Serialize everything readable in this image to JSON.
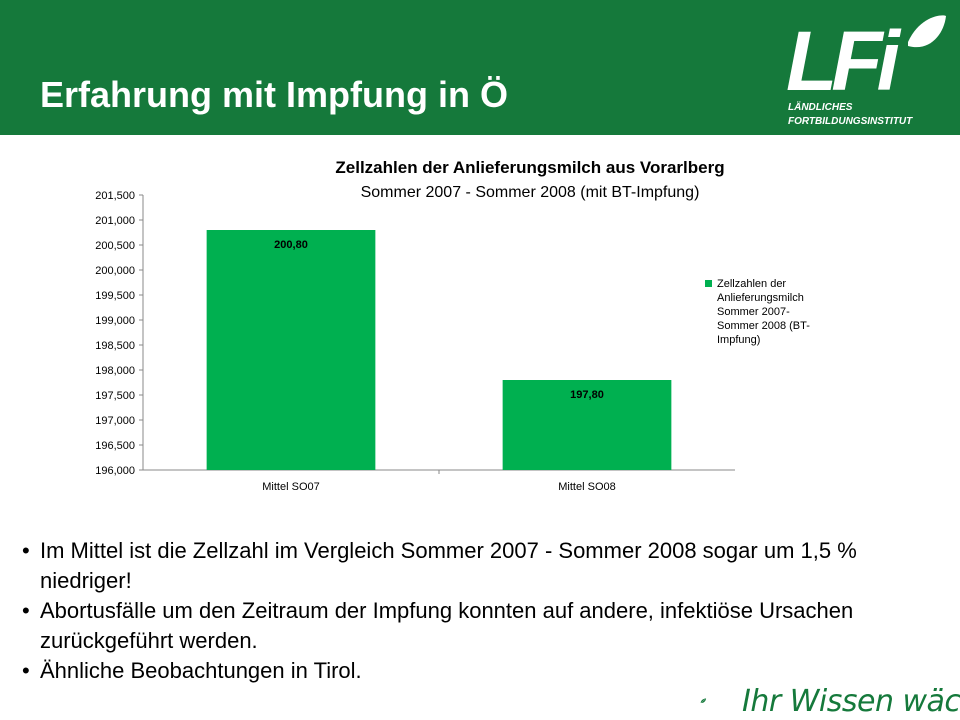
{
  "slide": {
    "title": "Erfahrung mit Impfung in Ö",
    "bullets": [
      "Im Mittel ist die Zellzahl im Vergleich Sommer 2007 - Sommer 2008 sogar um 1,5 % niedriger!",
      "Abortusfälle um den Zeitraum der Impfung konnten auf andere, infektiöse Ursachen zurückgeführt werden.",
      "Ähnliche Beobachtungen in Tirol."
    ]
  },
  "logo": {
    "mark": "LFi",
    "line1": "LÄNDLICHES",
    "line2": "FORTBILDUNGSINSTITUT"
  },
  "footer": {
    "slogan": "Ihr Wissen wächst",
    "icon": "leaf-icon"
  },
  "colors": {
    "header": "#15793b",
    "bar": "#00b050",
    "footer": "#15793b"
  },
  "chart_data": {
    "type": "bar",
    "title": "Zellzahlen der Anlieferungsmilch aus Vorarlberg",
    "subtitle": "Sommer 2007 - Sommer 2008 (mit BT-Impfung)",
    "categories": [
      "Mittel SO07",
      "Mittel SO08"
    ],
    "series": [
      {
        "name": "Zellzahlen der Anlieferungsmilch Sommer 2007-Sommer 2008 (BT-Impfung)",
        "values": [
          200.8,
          197.8
        ],
        "labels": [
          "200,80",
          "197,80"
        ]
      }
    ],
    "ylim": [
      196.0,
      201.5
    ],
    "yticks": [
      "196,000",
      "196,500",
      "197,000",
      "197,500",
      "198,000",
      "198,500",
      "199,000",
      "199,500",
      "200,000",
      "200,500",
      "201,000",
      "201,500"
    ],
    "xlabel": "",
    "ylabel": "",
    "grid": false,
    "legend": "right"
  }
}
